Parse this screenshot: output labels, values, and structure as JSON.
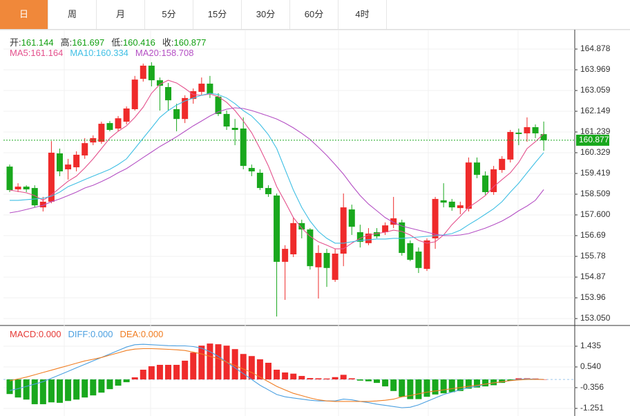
{
  "tabs": [
    "日",
    "周",
    "月",
    "5分",
    "15分",
    "30分",
    "60分",
    "4时"
  ],
  "active_tab": 0,
  "chart_data": [
    {
      "type": "candlestick",
      "up_color": "#ef2b2b",
      "down_color": "#19a81d",
      "grid": true,
      "categories": [
        null,
        null,
        null,
        null,
        null,
        null,
        null,
        null,
        null,
        null,
        null,
        null,
        null,
        null,
        null,
        null,
        null,
        null,
        null,
        null,
        null,
        null,
        null,
        null,
        null,
        null,
        null,
        null,
        null,
        null,
        null,
        null,
        null,
        null,
        null,
        null,
        null,
        null,
        null,
        null,
        null,
        null,
        null,
        null,
        null,
        null,
        null,
        null,
        null,
        null,
        null,
        null,
        null,
        null,
        null,
        null,
        null,
        null,
        null,
        null,
        null,
        null,
        null,
        null,
        null
      ],
      "open": [
        159.72,
        158.72,
        158.84,
        158.78,
        157.93,
        158.18,
        160.3,
        159.6,
        159.69,
        160.21,
        160.78,
        160.81,
        161.63,
        161.39,
        161.69,
        162.24,
        163.57,
        164.15,
        163.51,
        163.21,
        162.24,
        161.81,
        162.69,
        163.0,
        163.36,
        162.79,
        162.03,
        161.42,
        161.39,
        159.66,
        159.45,
        158.78,
        158.45,
        155.54,
        155.87,
        157.24,
        156.96,
        155.3,
        155.93,
        154.75,
        155.9,
        157.84,
        156.84,
        156.36,
        156.84,
        156.84,
        157.17,
        157.27,
        156.36,
        155.99,
        155.23,
        156.57,
        158.24,
        158.18,
        157.9,
        157.87,
        159.9,
        159.33,
        158.6,
        159.57,
        160.03,
        161.21,
        161.18,
        161.45,
        161.144
      ],
      "high": [
        159.81,
        158.99,
        158.9,
        158.9,
        158.39,
        160.84,
        160.51,
        160.06,
        160.39,
        160.97,
        161.09,
        161.69,
        161.72,
        161.94,
        162.36,
        163.7,
        164.24,
        164.3,
        163.63,
        163.39,
        162.48,
        162.85,
        163.15,
        163.63,
        163.7,
        162.94,
        162.18,
        161.81,
        161.88,
        159.81,
        159.6,
        158.9,
        158.54,
        156.27,
        157.48,
        157.39,
        157.02,
        156.27,
        156.11,
        156.11,
        158.54,
        158.05,
        157.17,
        157.02,
        157.02,
        157.27,
        158.39,
        157.39,
        156.48,
        156.17,
        156.57,
        158.39,
        158.99,
        158.3,
        158.18,
        160.12,
        160.12,
        159.51,
        159.75,
        160.18,
        161.33,
        161.39,
        161.88,
        161.57,
        161.697
      ],
      "low": [
        158.6,
        158.6,
        158.6,
        157.93,
        157.75,
        158.11,
        159.3,
        159.15,
        159.51,
        160.06,
        160.66,
        160.72,
        161.27,
        161.27,
        161.57,
        162.18,
        163.45,
        163.24,
        162.18,
        162.18,
        161.27,
        161.63,
        162.48,
        162.85,
        162.73,
        161.94,
        161.33,
        160.66,
        159.6,
        159.3,
        158.69,
        158.39,
        153.14,
        153.87,
        155.75,
        156.57,
        155.2,
        153.93,
        154.44,
        154.66,
        155.35,
        156.72,
        156.17,
        156.27,
        156.57,
        156.72,
        157.02,
        155.81,
        155.57,
        155.05,
        155.14,
        156.11,
        157.93,
        157.78,
        157.63,
        157.75,
        159.21,
        158.48,
        158.48,
        159.45,
        159.9,
        160.66,
        160.81,
        160.97,
        160.416
      ],
      "close": [
        158.69,
        158.84,
        158.72,
        158.02,
        158.18,
        160.33,
        159.51,
        159.81,
        160.24,
        160.75,
        160.97,
        161.6,
        161.33,
        161.84,
        162.27,
        163.54,
        164.15,
        163.51,
        163.27,
        162.63,
        161.81,
        162.73,
        163.03,
        163.36,
        162.91,
        162.03,
        161.48,
        161.33,
        159.75,
        159.51,
        158.78,
        158.51,
        155.54,
        156.11,
        157.24,
        156.96,
        155.35,
        155.93,
        155.27,
        155.9,
        157.93,
        157.08,
        156.42,
        156.78,
        156.66,
        157.14,
        157.45,
        155.93,
        155.63,
        155.27,
        156.48,
        158.3,
        158.14,
        157.93,
        158.02,
        159.9,
        159.36,
        158.6,
        159.6,
        160.06,
        161.24,
        161.15,
        161.45,
        161.18,
        160.877
      ],
      "ohlc_labels": [
        "开:",
        "高:",
        "低:",
        "收:"
      ],
      "series": [
        {
          "name": "MA5:",
          "color": "#e4508c",
          "values": [
            158.69,
            158.63,
            158.57,
            158.45,
            158.24,
            158.48,
            158.78,
            159.08,
            159.3,
            159.66,
            160.06,
            160.51,
            160.97,
            161.27,
            161.51,
            161.88,
            162.33,
            162.94,
            163.33,
            163.51,
            163.39,
            163.15,
            162.88,
            162.85,
            162.91,
            162.79,
            162.54,
            162.18,
            161.72,
            161.21,
            160.51,
            159.75,
            158.84,
            158.18,
            157.48,
            157.02,
            156.66,
            156.42,
            156.27,
            156.11,
            156.11,
            156.36,
            156.57,
            156.72,
            156.78,
            156.84,
            156.93,
            156.87,
            156.72,
            156.48,
            156.36,
            156.42,
            156.72,
            157.17,
            157.54,
            157.93,
            158.18,
            158.45,
            158.84,
            159.15,
            159.45,
            159.9,
            160.51,
            160.81,
            161.164
          ]
        },
        {
          "name": "MA10:",
          "color": "#3fbfe4",
          "values": [
            158.24,
            158.24,
            158.27,
            158.3,
            158.33,
            158.42,
            158.6,
            158.84,
            158.99,
            159.15,
            159.3,
            159.45,
            159.6,
            159.81,
            160.06,
            160.51,
            160.97,
            161.42,
            161.88,
            162.18,
            162.42,
            162.6,
            162.73,
            162.85,
            162.94,
            162.88,
            162.73,
            162.48,
            162.18,
            161.94,
            161.57,
            161.12,
            160.51,
            159.6,
            158.69,
            157.93,
            157.33,
            156.87,
            156.57,
            156.36,
            156.36,
            156.42,
            156.48,
            156.51,
            156.54,
            156.54,
            156.57,
            156.57,
            156.6,
            156.63,
            156.66,
            156.69,
            156.72,
            156.78,
            156.93,
            157.17,
            157.39,
            157.63,
            157.87,
            158.18,
            158.6,
            158.99,
            159.45,
            159.9,
            160.334
          ]
        },
        {
          "name": "MA20:",
          "color": "#b44fc4",
          "values": [
            157.69,
            157.75,
            157.84,
            157.93,
            158.02,
            158.18,
            158.3,
            158.45,
            158.6,
            158.78,
            158.9,
            159.06,
            159.24,
            159.45,
            159.63,
            159.87,
            160.12,
            160.36,
            160.6,
            160.81,
            161.03,
            161.27,
            161.51,
            161.72,
            161.94,
            162.12,
            162.24,
            162.3,
            162.27,
            162.18,
            162.06,
            161.94,
            161.81,
            161.63,
            161.42,
            161.18,
            160.91,
            160.57,
            160.21,
            159.81,
            159.39,
            158.9,
            158.45,
            158.08,
            157.78,
            157.48,
            157.27,
            157.11,
            157.02,
            156.93,
            156.84,
            156.75,
            156.69,
            156.69,
            156.72,
            156.78,
            156.9,
            157.02,
            157.17,
            157.33,
            157.54,
            157.78,
            157.99,
            158.24,
            158.708
          ]
        }
      ],
      "ylim": [
        152.777,
        165.667
      ],
      "yticks": [
        164.878,
        163.969,
        163.059,
        162.149,
        161.239,
        160.329,
        159.419,
        158.509,
        {
          "value": 157.6,
          "label": "157.600"
        },
        156.69,
        155.78,
        154.87,
        153.96,
        {
          "value": 153.05,
          "label": "153.050"
        }
      ]
    },
    {
      "type": "macd",
      "name": "MACD:",
      "color": "#e53935",
      "up_color": "#ef2b2b",
      "down_color": "#19a81d",
      "last_label": "0.000",
      "grid": true,
      "categories": [
        null,
        null,
        null,
        null,
        null,
        null,
        null,
        null,
        null,
        null,
        null,
        null,
        null,
        null,
        null,
        null,
        null,
        null,
        null,
        null,
        null,
        null,
        null,
        null,
        null,
        null,
        null,
        null,
        null,
        null,
        null,
        null,
        null,
        null,
        null,
        null,
        null,
        null,
        null,
        null,
        null,
        null,
        null,
        null,
        null,
        null,
        null,
        null,
        null,
        null,
        null,
        null,
        null,
        null,
        null,
        null,
        null,
        null,
        null,
        null,
        null,
        null,
        null,
        null,
        null
      ],
      "values": [
        -0.63,
        -0.78,
        -0.87,
        -1.07,
        -1.07,
        -0.99,
        -1.01,
        -0.93,
        -0.87,
        -0.78,
        -0.69,
        -0.57,
        -0.42,
        -0.27,
        -0.12,
        0.09,
        0.42,
        0.57,
        0.63,
        0.63,
        0.63,
        0.81,
        1.16,
        1.46,
        1.55,
        1.52,
        1.46,
        1.31,
        1.1,
        1.01,
        0.87,
        0.72,
        0.42,
        0.3,
        0.25,
        0.15,
        0.06,
        0.05,
        0.04,
        0.1,
        0.2,
        0.05,
        -0.05,
        -0.08,
        -0.15,
        -0.3,
        -0.5,
        -0.75,
        -0.85,
        -0.85,
        -0.75,
        -0.65,
        -0.6,
        -0.55,
        -0.5,
        -0.4,
        -0.35,
        -0.3,
        -0.25,
        -0.15,
        -0.05,
        0.05,
        0.05,
        0.04,
        0
      ],
      "series": [
        {
          "name": "DIFF:",
          "color": "#4a9fe0",
          "last_label": "0.000",
          "values": [
            -0.48,
            -0.4,
            -0.3,
            -0.2,
            -0.1,
            0.05,
            0.2,
            0.35,
            0.5,
            0.65,
            0.8,
            0.95,
            1.1,
            1.25,
            1.4,
            1.5,
            1.52,
            1.5,
            1.48,
            1.46,
            1.45,
            1.45,
            1.42,
            1.35,
            1.2,
            1.0,
            0.75,
            0.5,
            0.25,
            0.0,
            -0.25,
            -0.45,
            -0.65,
            -0.75,
            -0.8,
            -0.85,
            -0.9,
            -0.93,
            -0.93,
            -0.93,
            -0.85,
            -0.88,
            -0.95,
            -1.0,
            -1.07,
            -1.12,
            -1.17,
            -1.22,
            -1.2,
            -1.1,
            -0.95,
            -0.8,
            -0.65,
            -0.55,
            -0.45,
            -0.35,
            -0.3,
            -0.2,
            -0.15,
            -0.1,
            -0.05,
            0.0,
            0.02,
            0.01,
            0
          ]
        },
        {
          "name": "DEA:",
          "color": "#f07c20",
          "last_label": "0.000",
          "values": [
            -0.06,
            0.02,
            0.1,
            0.2,
            0.3,
            0.4,
            0.5,
            0.6,
            0.7,
            0.8,
            0.87,
            0.95,
            1.05,
            1.15,
            1.25,
            1.31,
            1.33,
            1.33,
            1.32,
            1.3,
            1.28,
            1.25,
            1.18,
            1.1,
            1.0,
            0.9,
            0.75,
            0.6,
            0.45,
            0.3,
            0.1,
            -0.1,
            -0.3,
            -0.45,
            -0.6,
            -0.7,
            -0.8,
            -0.88,
            -0.93,
            -0.95,
            -0.95,
            -0.95,
            -0.95,
            -0.95,
            -0.93,
            -0.9,
            -0.85,
            -0.75,
            -0.7,
            -0.62,
            -0.55,
            -0.5,
            -0.45,
            -0.4,
            -0.35,
            -0.3,
            -0.25,
            -0.2,
            -0.15,
            -0.1,
            -0.05,
            -0.02,
            0.0,
            0.0,
            0
          ]
        }
      ],
      "ylim": [
        -1.52,
        2.301
      ],
      "yticks": [
        1.435,
        {
          "value": 0.54,
          "label": "0.540"
        },
        -0.356,
        -1.251
      ]
    }
  ]
}
